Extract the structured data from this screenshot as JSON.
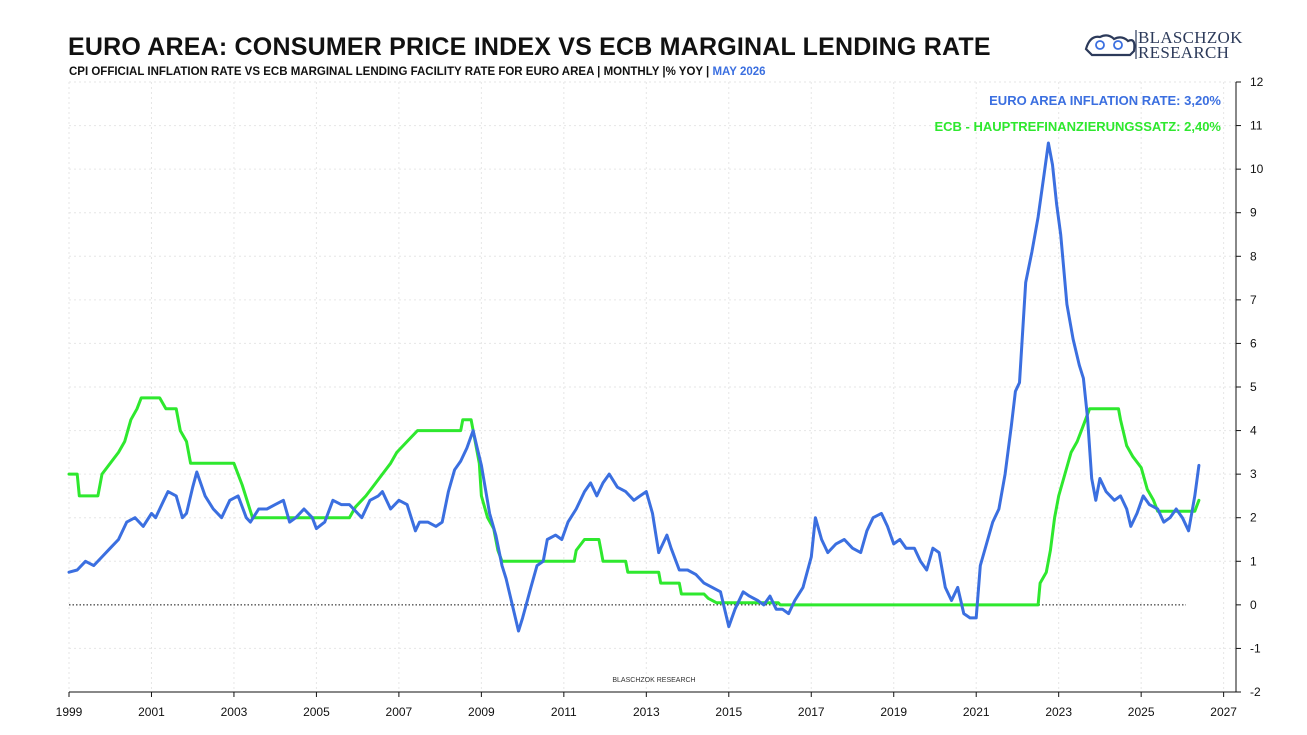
{
  "header": {
    "title": "EURO AREA: CONSUMER PRICE INDEX VS ECB MARGINAL LENDING RATE",
    "subtitle": "CPI OFFICIAL INFLATION RATE VS ECB MARGINAL LENDING FACILITY RATE FOR EURO AREA | MONTHLY |% YOY | ",
    "subtitle_date": "MAY 2026"
  },
  "logo": {
    "line1": "BLASCHZOK",
    "line2": "RESEARCH"
  },
  "watermark": "BLASCHZOK RESEARCH",
  "colors": {
    "cpi": "#3b6fe0",
    "ecb": "#2ee82e",
    "grid": "#e6e6e6"
  },
  "chart_data": {
    "type": "line",
    "title": "EURO AREA: CONSUMER PRICE INDEX VS ECB MARGINAL LENDING RATE",
    "xlabel": "",
    "ylabel": "",
    "xlim": [
      1999,
      2027.3
    ],
    "ylim": [
      -2,
      12
    ],
    "x_ticks": [
      "1999",
      "2001",
      "2003",
      "2005",
      "2007",
      "2009",
      "2011",
      "2013",
      "2015",
      "2017",
      "2019",
      "2021",
      "2023",
      "2025",
      "2027"
    ],
    "y_ticks": [
      "12",
      "11",
      "10",
      "9",
      "8",
      "7",
      "6",
      "5",
      "4",
      "3",
      "2",
      "1",
      "0",
      "-1",
      "-2"
    ],
    "grid": true,
    "zero_line": true,
    "y_axis_position": "right",
    "legend_position": "top-right",
    "series": [
      {
        "name": "EURO AREA INFLATION RATE: 3,20%",
        "color": "#3b6fe0",
        "points": [
          [
            1999.0,
            0.75
          ],
          [
            1999.2,
            0.8
          ],
          [
            1999.4,
            1.0
          ],
          [
            1999.6,
            0.9
          ],
          [
            1999.8,
            1.1
          ],
          [
            2000.0,
            1.3
          ],
          [
            2000.2,
            1.5
          ],
          [
            2000.4,
            1.9
          ],
          [
            2000.6,
            2.0
          ],
          [
            2000.8,
            1.8
          ],
          [
            2001.0,
            2.1
          ],
          [
            2001.1,
            2.0
          ],
          [
            2001.3,
            2.4
          ],
          [
            2001.4,
            2.6
          ],
          [
            2001.6,
            2.5
          ],
          [
            2001.75,
            2.0
          ],
          [
            2001.85,
            2.1
          ],
          [
            2002.0,
            2.7
          ],
          [
            2002.1,
            3.05
          ],
          [
            2002.3,
            2.5
          ],
          [
            2002.5,
            2.2
          ],
          [
            2002.7,
            2.0
          ],
          [
            2002.9,
            2.4
          ],
          [
            2003.1,
            2.5
          ],
          [
            2003.3,
            2.0
          ],
          [
            2003.4,
            1.9
          ],
          [
            2003.6,
            2.2
          ],
          [
            2003.8,
            2.2
          ],
          [
            2004.0,
            2.3
          ],
          [
            2004.2,
            2.4
          ],
          [
            2004.35,
            1.9
          ],
          [
            2004.5,
            2.0
          ],
          [
            2004.7,
            2.2
          ],
          [
            2004.9,
            2.0
          ],
          [
            2005.0,
            1.75
          ],
          [
            2005.2,
            1.9
          ],
          [
            2005.4,
            2.4
          ],
          [
            2005.6,
            2.3
          ],
          [
            2005.8,
            2.3
          ],
          [
            2006.0,
            2.1
          ],
          [
            2006.1,
            2.0
          ],
          [
            2006.3,
            2.4
          ],
          [
            2006.5,
            2.5
          ],
          [
            2006.6,
            2.6
          ],
          [
            2006.8,
            2.2
          ],
          [
            2007.0,
            2.4
          ],
          [
            2007.2,
            2.3
          ],
          [
            2007.4,
            1.7
          ],
          [
            2007.5,
            1.9
          ],
          [
            2007.7,
            1.9
          ],
          [
            2007.9,
            1.8
          ],
          [
            2008.05,
            1.9
          ],
          [
            2008.2,
            2.6
          ],
          [
            2008.35,
            3.1
          ],
          [
            2008.5,
            3.3
          ],
          [
            2008.65,
            3.6
          ],
          [
            2008.8,
            4.0
          ],
          [
            2008.9,
            3.6
          ],
          [
            2009.0,
            3.2
          ],
          [
            2009.2,
            2.1
          ],
          [
            2009.35,
            1.6
          ],
          [
            2009.5,
            0.9
          ],
          [
            2009.6,
            0.6
          ],
          [
            2009.75,
            0.0
          ],
          [
            2009.9,
            -0.6
          ],
          [
            2010.0,
            -0.3
          ],
          [
            2010.2,
            0.4
          ],
          [
            2010.35,
            0.9
          ],
          [
            2010.5,
            1.0
          ],
          [
            2010.6,
            1.5
          ],
          [
            2010.8,
            1.6
          ],
          [
            2010.95,
            1.5
          ],
          [
            2011.1,
            1.9
          ],
          [
            2011.3,
            2.2
          ],
          [
            2011.5,
            2.6
          ],
          [
            2011.65,
            2.8
          ],
          [
            2011.8,
            2.5
          ],
          [
            2011.95,
            2.8
          ],
          [
            2012.1,
            3.0
          ],
          [
            2012.3,
            2.7
          ],
          [
            2012.5,
            2.6
          ],
          [
            2012.7,
            2.4
          ],
          [
            2012.85,
            2.5
          ],
          [
            2013.0,
            2.6
          ],
          [
            2013.15,
            2.1
          ],
          [
            2013.3,
            1.2
          ],
          [
            2013.5,
            1.6
          ],
          [
            2013.6,
            1.3
          ],
          [
            2013.8,
            0.8
          ],
          [
            2014.0,
            0.8
          ],
          [
            2014.2,
            0.7
          ],
          [
            2014.4,
            0.5
          ],
          [
            2014.6,
            0.4
          ],
          [
            2014.8,
            0.3
          ],
          [
            2015.0,
            -0.5
          ],
          [
            2015.15,
            -0.1
          ],
          [
            2015.35,
            0.3
          ],
          [
            2015.5,
            0.2
          ],
          [
            2015.7,
            0.1
          ],
          [
            2015.85,
            0.0
          ],
          [
            2016.0,
            0.2
          ],
          [
            2016.15,
            -0.1
          ],
          [
            2016.3,
            -0.1
          ],
          [
            2016.45,
            -0.2
          ],
          [
            2016.6,
            0.1
          ],
          [
            2016.8,
            0.4
          ],
          [
            2017.0,
            1.1
          ],
          [
            2017.1,
            2.0
          ],
          [
            2017.25,
            1.5
          ],
          [
            2017.4,
            1.2
          ],
          [
            2017.6,
            1.4
          ],
          [
            2017.8,
            1.5
          ],
          [
            2018.0,
            1.3
          ],
          [
            2018.2,
            1.2
          ],
          [
            2018.35,
            1.7
          ],
          [
            2018.5,
            2.0
          ],
          [
            2018.7,
            2.1
          ],
          [
            2018.85,
            1.8
          ],
          [
            2019.0,
            1.4
          ],
          [
            2019.15,
            1.5
          ],
          [
            2019.3,
            1.3
          ],
          [
            2019.5,
            1.3
          ],
          [
            2019.65,
            1.0
          ],
          [
            2019.8,
            0.8
          ],
          [
            2019.95,
            1.3
          ],
          [
            2020.1,
            1.2
          ],
          [
            2020.25,
            0.4
          ],
          [
            2020.4,
            0.1
          ],
          [
            2020.55,
            0.4
          ],
          [
            2020.7,
            -0.2
          ],
          [
            2020.85,
            -0.3
          ],
          [
            2021.0,
            -0.3
          ],
          [
            2021.1,
            0.9
          ],
          [
            2021.25,
            1.4
          ],
          [
            2021.4,
            1.9
          ],
          [
            2021.55,
            2.2
          ],
          [
            2021.7,
            3.0
          ],
          [
            2021.85,
            4.1
          ],
          [
            2021.95,
            4.9
          ],
          [
            2022.05,
            5.1
          ],
          [
            2022.2,
            7.4
          ],
          [
            2022.35,
            8.1
          ],
          [
            2022.5,
            8.9
          ],
          [
            2022.65,
            9.9
          ],
          [
            2022.75,
            10.6
          ],
          [
            2022.85,
            10.1
          ],
          [
            2022.95,
            9.2
          ],
          [
            2023.05,
            8.5
          ],
          [
            2023.2,
            6.9
          ],
          [
            2023.35,
            6.1
          ],
          [
            2023.5,
            5.5
          ],
          [
            2023.6,
            5.2
          ],
          [
            2023.7,
            4.3
          ],
          [
            2023.8,
            2.9
          ],
          [
            2023.9,
            2.4
          ],
          [
            2024.0,
            2.9
          ],
          [
            2024.15,
            2.6
          ],
          [
            2024.35,
            2.4
          ],
          [
            2024.5,
            2.5
          ],
          [
            2024.65,
            2.2
          ],
          [
            2024.75,
            1.8
          ],
          [
            2024.9,
            2.1
          ],
          [
            2025.05,
            2.5
          ],
          [
            2025.2,
            2.3
          ],
          [
            2025.4,
            2.2
          ],
          [
            2025.55,
            1.9
          ],
          [
            2025.7,
            2.0
          ],
          [
            2025.85,
            2.2
          ],
          [
            2026.0,
            2.0
          ],
          [
            2026.15,
            1.7
          ],
          [
            2026.3,
            2.5
          ],
          [
            2026.4,
            3.2
          ]
        ]
      },
      {
        "name": "ECB - HAUPTREFINANZIERUNGSSATZ: 2,40%",
        "color": "#2ee82e",
        "points": [
          [
            1999.0,
            3.0
          ],
          [
            1999.2,
            3.0
          ],
          [
            1999.25,
            2.5
          ],
          [
            1999.7,
            2.5
          ],
          [
            1999.8,
            3.0
          ],
          [
            2000.0,
            3.25
          ],
          [
            2000.2,
            3.5
          ],
          [
            2000.35,
            3.75
          ],
          [
            2000.5,
            4.25
          ],
          [
            2000.65,
            4.5
          ],
          [
            2000.75,
            4.75
          ],
          [
            2001.2,
            4.75
          ],
          [
            2001.35,
            4.5
          ],
          [
            2001.6,
            4.5
          ],
          [
            2001.7,
            4.0
          ],
          [
            2001.85,
            3.75
          ],
          [
            2001.95,
            3.25
          ],
          [
            2003.0,
            3.25
          ],
          [
            2003.2,
            2.75
          ],
          [
            2003.45,
            2.0
          ],
          [
            2005.8,
            2.0
          ],
          [
            2005.95,
            2.25
          ],
          [
            2006.2,
            2.5
          ],
          [
            2006.4,
            2.75
          ],
          [
            2006.6,
            3.0
          ],
          [
            2006.8,
            3.25
          ],
          [
            2006.95,
            3.5
          ],
          [
            2007.2,
            3.75
          ],
          [
            2007.45,
            4.0
          ],
          [
            2008.5,
            4.0
          ],
          [
            2008.55,
            4.25
          ],
          [
            2008.75,
            4.25
          ],
          [
            2008.85,
            3.75
          ],
          [
            2008.95,
            3.25
          ],
          [
            2009.0,
            2.5
          ],
          [
            2009.15,
            2.0
          ],
          [
            2009.3,
            1.75
          ],
          [
            2009.4,
            1.25
          ],
          [
            2009.5,
            1.0
          ],
          [
            2011.25,
            1.0
          ],
          [
            2011.3,
            1.25
          ],
          [
            2011.5,
            1.5
          ],
          [
            2011.85,
            1.5
          ],
          [
            2011.9,
            1.25
          ],
          [
            2011.95,
            1.0
          ],
          [
            2012.5,
            1.0
          ],
          [
            2012.55,
            0.75
          ],
          [
            2013.3,
            0.75
          ],
          [
            2013.35,
            0.5
          ],
          [
            2013.8,
            0.5
          ],
          [
            2013.85,
            0.25
          ],
          [
            2014.4,
            0.25
          ],
          [
            2014.5,
            0.15
          ],
          [
            2014.7,
            0.05
          ],
          [
            2016.2,
            0.05
          ],
          [
            2016.25,
            0.0
          ],
          [
            2022.5,
            0.0
          ],
          [
            2022.55,
            0.5
          ],
          [
            2022.7,
            0.75
          ],
          [
            2022.8,
            1.25
          ],
          [
            2022.9,
            2.0
          ],
          [
            2023.0,
            2.5
          ],
          [
            2023.15,
            3.0
          ],
          [
            2023.3,
            3.5
          ],
          [
            2023.45,
            3.75
          ],
          [
            2023.55,
            4.0
          ],
          [
            2023.65,
            4.25
          ],
          [
            2023.75,
            4.5
          ],
          [
            2024.45,
            4.5
          ],
          [
            2024.5,
            4.25
          ],
          [
            2024.65,
            3.65
          ],
          [
            2024.8,
            3.4
          ],
          [
            2025.0,
            3.15
          ],
          [
            2025.15,
            2.65
          ],
          [
            2025.3,
            2.4
          ],
          [
            2025.4,
            2.15
          ],
          [
            2026.3,
            2.15
          ],
          [
            2026.4,
            2.4
          ]
        ]
      }
    ]
  }
}
